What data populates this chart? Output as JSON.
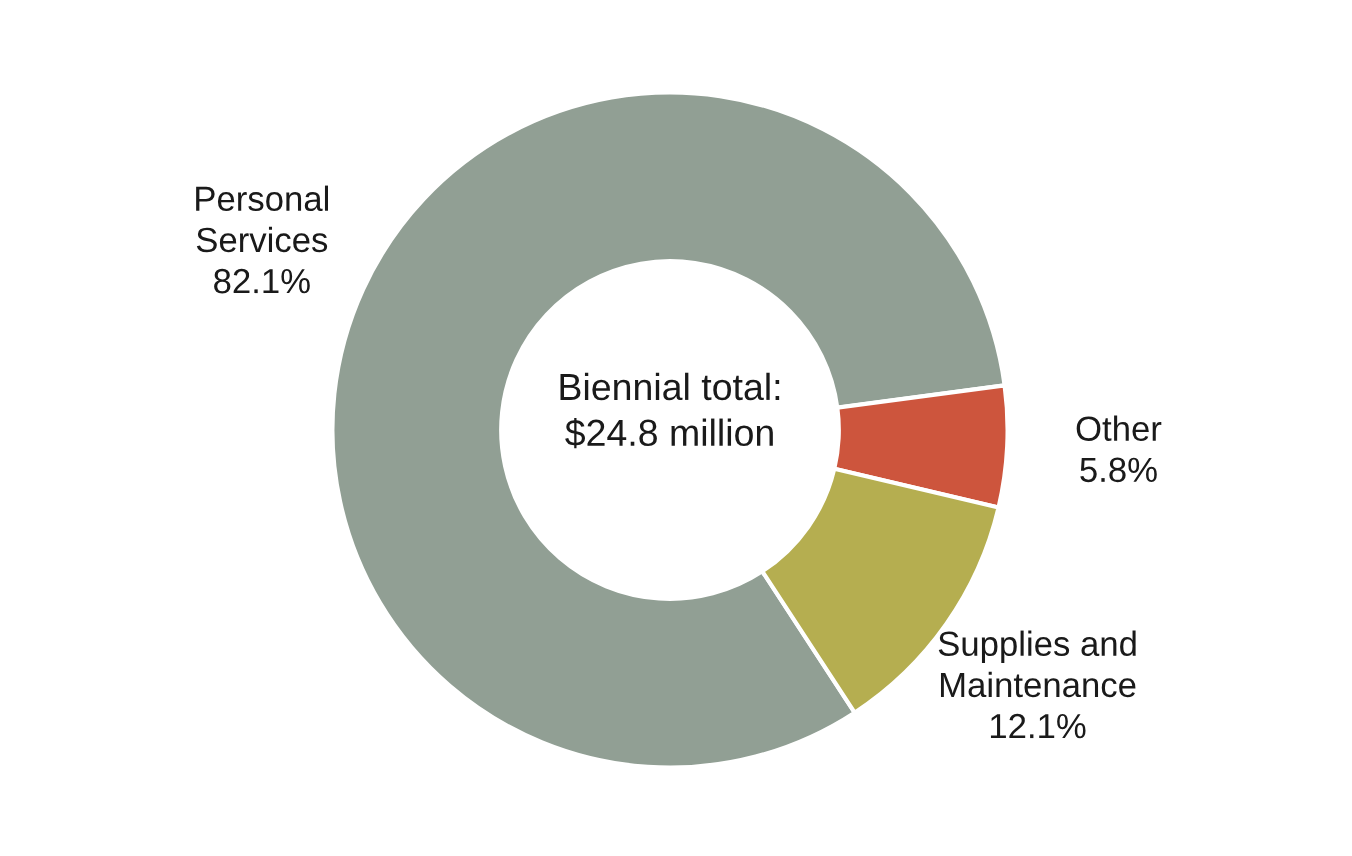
{
  "chart_data": {
    "type": "donut",
    "categories": [
      "Personal Services",
      "Other",
      "Supplies and Maintenance"
    ],
    "values": [
      82.1,
      5.8,
      12.1
    ],
    "value_labels": [
      "82.1%",
      "5.8%",
      "12.1%"
    ],
    "colors": [
      "#919f94",
      "#cd553d",
      "#b5ae50"
    ],
    "annotations": [
      "Biennial total: $24.8 million"
    ],
    "legend": false
  }
}
